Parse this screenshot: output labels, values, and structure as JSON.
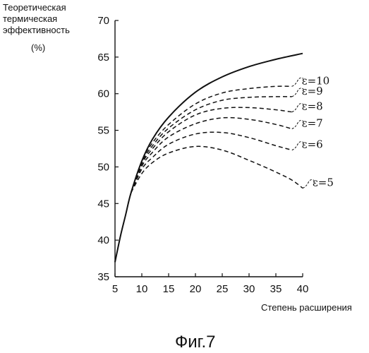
{
  "chart_data": {
    "type": "line",
    "ylabel_lines": [
      "Теоретическая",
      "термическая",
      "эффективность"
    ],
    "yunit": "(%)",
    "xlabel": "Степень расширения",
    "caption": "Фиг.7",
    "xlim": [
      5,
      40
    ],
    "ylim": [
      35,
      70
    ],
    "xticks": [
      5,
      10,
      15,
      20,
      25,
      30,
      35,
      40
    ],
    "yticks": [
      35,
      40,
      45,
      50,
      55,
      60,
      65,
      70
    ],
    "series": [
      {
        "style": "solid",
        "points": [
          [
            5,
            37.0
          ],
          [
            6,
            40.5
          ],
          [
            7,
            43.5
          ],
          [
            8,
            46.5
          ],
          [
            10,
            50.8
          ],
          [
            12,
            53.8
          ],
          [
            15,
            56.8
          ],
          [
            20,
            60.2
          ],
          [
            25,
            62.3
          ],
          [
            30,
            63.7
          ],
          [
            35,
            64.7
          ],
          [
            40,
            65.5
          ]
        ]
      },
      {
        "name": "ε=10",
        "style": "dashed",
        "points": [
          [
            8,
            46.5
          ],
          [
            10,
            50.8
          ],
          [
            12,
            53.3
          ],
          [
            15,
            55.8
          ],
          [
            20,
            58.6
          ],
          [
            25,
            60.1
          ],
          [
            30,
            60.7
          ],
          [
            35,
            61.0
          ],
          [
            38,
            61.0
          ]
        ]
      },
      {
        "name": "ε=9",
        "style": "dashed",
        "points": [
          [
            8,
            46.5
          ],
          [
            10,
            50.6
          ],
          [
            12,
            52.9
          ],
          [
            15,
            55.3
          ],
          [
            20,
            57.8
          ],
          [
            25,
            59.1
          ],
          [
            30,
            59.5
          ],
          [
            35,
            59.6
          ],
          [
            38,
            59.6
          ]
        ]
      },
      {
        "name": "ε=8",
        "style": "dashed",
        "points": [
          [
            8,
            46.5
          ],
          [
            10,
            50.4
          ],
          [
            12,
            52.5
          ],
          [
            15,
            54.8
          ],
          [
            20,
            57.1
          ],
          [
            25,
            58.0
          ],
          [
            30,
            58.1
          ],
          [
            35,
            57.8
          ],
          [
            38,
            57.5
          ]
        ]
      },
      {
        "name": "ε=7",
        "style": "dashed",
        "points": [
          [
            8,
            46.5
          ],
          [
            10,
            50.1
          ],
          [
            12,
            52.0
          ],
          [
            15,
            54.1
          ],
          [
            20,
            55.9
          ],
          [
            25,
            56.7
          ],
          [
            30,
            56.5
          ],
          [
            35,
            55.8
          ],
          [
            38,
            55.2
          ]
        ]
      },
      {
        "name": "ε=6",
        "style": "dashed",
        "points": [
          [
            8,
            46.5
          ],
          [
            10,
            49.7
          ],
          [
            12,
            51.3
          ],
          [
            15,
            53.1
          ],
          [
            20,
            54.5
          ],
          [
            25,
            54.7
          ],
          [
            30,
            54.0
          ],
          [
            35,
            52.9
          ],
          [
            38,
            52.3
          ]
        ]
      },
      {
        "name": "ε=5",
        "style": "dashed",
        "points": [
          [
            8,
            46.5
          ],
          [
            10,
            49.1
          ],
          [
            12,
            50.6
          ],
          [
            15,
            51.9
          ],
          [
            20,
            52.8
          ],
          [
            25,
            52.3
          ],
          [
            30,
            50.9
          ],
          [
            35,
            49.3
          ],
          [
            38,
            48.2
          ],
          [
            40,
            47.1
          ]
        ]
      }
    ]
  }
}
